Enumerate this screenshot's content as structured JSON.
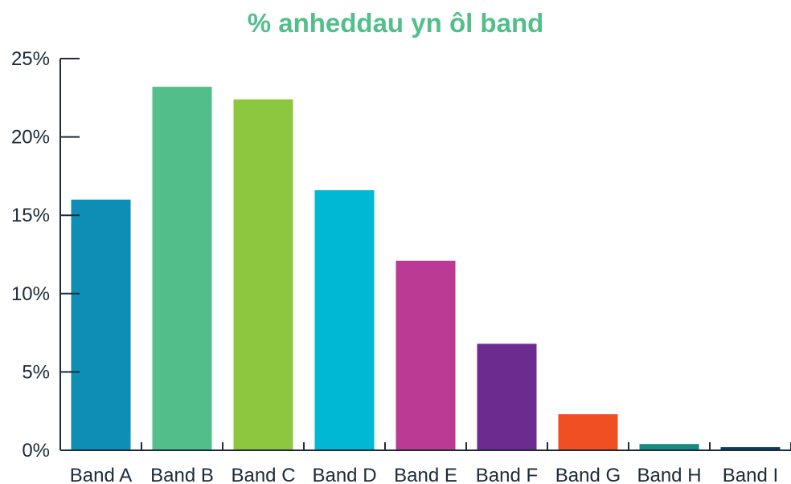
{
  "chart_data": {
    "type": "bar",
    "title": "% anheddau yn ôl band",
    "xlabel": "",
    "ylabel": "",
    "categories": [
      "Band A",
      "Band B",
      "Band C",
      "Band D",
      "Band E",
      "Band F",
      "Band G",
      "Band H",
      "Band I"
    ],
    "values": [
      16.0,
      23.2,
      22.4,
      16.6,
      12.1,
      6.8,
      2.3,
      0.4,
      0.2
    ],
    "bar_colors": [
      "#0e8eb5",
      "#52bf8a",
      "#8dc63f",
      "#00b8d4",
      "#bb3a93",
      "#6b2b8f",
      "#f04e23",
      "#178a82",
      "#0b3d5c"
    ],
    "ylim": [
      0,
      25
    ],
    "yticks": [
      0,
      5,
      10,
      15,
      20,
      25
    ],
    "ytick_labels": [
      "0%",
      "5%",
      "10%",
      "15%",
      "20%",
      "25%"
    ],
    "grid": false,
    "legend": "none",
    "title_color": "#52bf8a",
    "axis_color": "#1c2a3a"
  }
}
